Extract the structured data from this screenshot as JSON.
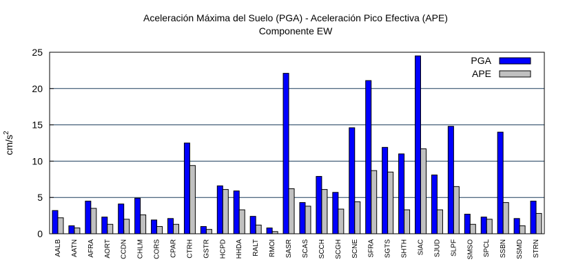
{
  "chart_data": {
    "type": "bar",
    "title": "Aceleración Máxima del Suelo (PGA) -  Aceleración Pico Efectiva (APE)",
    "subtitle": "Componente EW",
    "xlabel": "",
    "ylabel_base": "cm/s",
    "ylabel_exp": "2",
    "ylim": [
      0,
      25
    ],
    "yticks": [
      "0",
      "5",
      "10",
      "15",
      "20",
      "25"
    ],
    "grid": true,
    "legend_position": "top-right",
    "categories": [
      "AALB",
      "AATN",
      "AFRA",
      "AORT",
      "CCDN",
      "CHLM",
      "CORS",
      "CPAR",
      "CTRH",
      "GSTR",
      "HCPD",
      "HHDA",
      "RALT",
      "RMOI",
      "SASR",
      "SCAS",
      "SCCH",
      "SCGH",
      "SCNE",
      "SFRA",
      "SGTS",
      "SHTH",
      "SIAC",
      "SJUD",
      "SLPF",
      "SMSO",
      "SPCL",
      "SSBN",
      "SSMD",
      "STRN"
    ],
    "series": [
      {
        "name": "PGA",
        "color": "#0000ff",
        "values": [
          3.2,
          1.1,
          4.5,
          2.3,
          4.1,
          4.9,
          1.9,
          2.1,
          12.5,
          1.0,
          6.6,
          5.9,
          2.4,
          0.8,
          22.1,
          4.3,
          7.9,
          5.7,
          14.6,
          21.1,
          11.9,
          11.0,
          24.5,
          8.1,
          14.8,
          2.7,
          2.3,
          14.0,
          2.1,
          4.5
        ]
      },
      {
        "name": "APE",
        "color": "#c0c0c0",
        "values": [
          2.2,
          0.8,
          3.5,
          1.3,
          2.0,
          2.6,
          1.0,
          1.3,
          9.4,
          0.6,
          6.1,
          3.3,
          1.2,
          0.3,
          6.2,
          3.8,
          6.1,
          3.4,
          4.4,
          8.7,
          8.5,
          3.3,
          11.7,
          3.3,
          6.5,
          1.3,
          2.0,
          4.3,
          1.1,
          2.8
        ]
      }
    ]
  }
}
